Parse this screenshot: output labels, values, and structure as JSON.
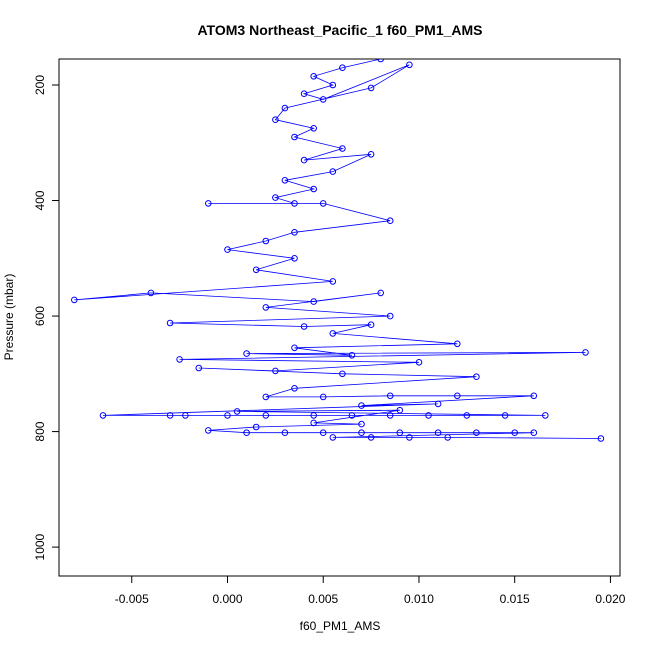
{
  "chart_data": {
    "type": "scatter",
    "title": "ATOM3 Northeast_Pacific_1 f60_PM1_AMS",
    "xlabel": "f60_PM1_AMS",
    "ylabel": "Pressure (mbar)",
    "xlim": [
      -0.0088,
      0.0205
    ],
    "ylim": [
      1050,
      155
    ],
    "y_reversed": true,
    "x_ticks": [
      -0.005,
      0.0,
      0.005,
      0.01,
      0.015,
      0.02
    ],
    "x_tick_labels": [
      "-0.005",
      "0.000",
      "0.005",
      "0.010",
      "0.015",
      "0.020"
    ],
    "y_ticks": [
      200,
      400,
      600,
      800,
      1000
    ],
    "y_tick_labels": [
      "200",
      "400",
      "600",
      "800",
      "1000"
    ],
    "grid": false,
    "color": "#0000ff",
    "series": [
      {
        "values": [
          [
            0.008,
            155
          ],
          [
            0.006,
            170
          ],
          [
            0.0045,
            185
          ],
          [
            0.0055,
            200
          ],
          [
            0.004,
            215
          ],
          [
            0.005,
            225
          ],
          [
            0.0095,
            165
          ],
          [
            0.0075,
            205
          ],
          [
            0.003,
            240
          ],
          [
            0.0025,
            260
          ],
          [
            0.0045,
            275
          ],
          [
            0.0035,
            290
          ],
          [
            0.006,
            310
          ],
          [
            0.004,
            330
          ],
          [
            0.0075,
            320
          ],
          [
            0.0055,
            350
          ],
          [
            0.003,
            365
          ],
          [
            0.0045,
            380
          ],
          [
            0.0025,
            395
          ],
          [
            0.0035,
            405
          ],
          [
            -0.001,
            405
          ],
          [
            0.005,
            405
          ],
          [
            0.0085,
            435
          ],
          [
            0.0035,
            455
          ],
          [
            0.002,
            470
          ],
          [
            0.0,
            485
          ],
          [
            0.0035,
            500
          ],
          [
            0.0015,
            520
          ],
          [
            0.0055,
            540
          ],
          [
            -0.008,
            572
          ],
          [
            -0.004,
            560
          ],
          [
            0.0045,
            575
          ],
          [
            0.008,
            560
          ],
          [
            0.002,
            585
          ],
          [
            0.0085,
            600
          ],
          [
            -0.003,
            612
          ],
          [
            0.004,
            618
          ],
          [
            0.0075,
            615
          ],
          [
            0.0055,
            630
          ],
          [
            0.012,
            648
          ],
          [
            0.0035,
            655
          ],
          [
            0.0065,
            668
          ],
          [
            0.001,
            665
          ],
          [
            0.0187,
            663
          ],
          [
            -0.0025,
            675
          ],
          [
            0.01,
            680
          ],
          [
            0.0025,
            695
          ],
          [
            -0.0015,
            690
          ],
          [
            0.006,
            700
          ],
          [
            0.013,
            705
          ],
          [
            0.0035,
            725
          ],
          [
            0.002,
            740
          ],
          [
            0.005,
            740
          ],
          [
            0.0085,
            738
          ],
          [
            0.012,
            738
          ],
          [
            0.016,
            738
          ],
          [
            0.007,
            755
          ],
          [
            0.011,
            752
          ],
          [
            -0.0065,
            772
          ],
          [
            -0.003,
            772
          ],
          [
            -0.0022,
            772
          ],
          [
            0.0,
            772
          ],
          [
            0.002,
            772
          ],
          [
            0.0045,
            772
          ],
          [
            0.0065,
            772
          ],
          [
            0.0085,
            772
          ],
          [
            0.0105,
            772
          ],
          [
            0.0125,
            772
          ],
          [
            0.0145,
            772
          ],
          [
            0.0166,
            772
          ],
          [
            0.0005,
            765
          ],
          [
            0.009,
            763
          ],
          [
            0.0045,
            785
          ],
          [
            0.007,
            787
          ],
          [
            0.0015,
            792
          ],
          [
            -0.001,
            798
          ],
          [
            0.001,
            802
          ],
          [
            0.003,
            802
          ],
          [
            0.005,
            802
          ],
          [
            0.007,
            802
          ],
          [
            0.009,
            802
          ],
          [
            0.011,
            802
          ],
          [
            0.013,
            802
          ],
          [
            0.015,
            802
          ],
          [
            0.016,
            802
          ],
          [
            0.0055,
            810
          ],
          [
            0.0075,
            810
          ],
          [
            0.0095,
            810
          ],
          [
            0.0115,
            810
          ],
          [
            0.0195,
            812
          ]
        ]
      }
    ]
  }
}
